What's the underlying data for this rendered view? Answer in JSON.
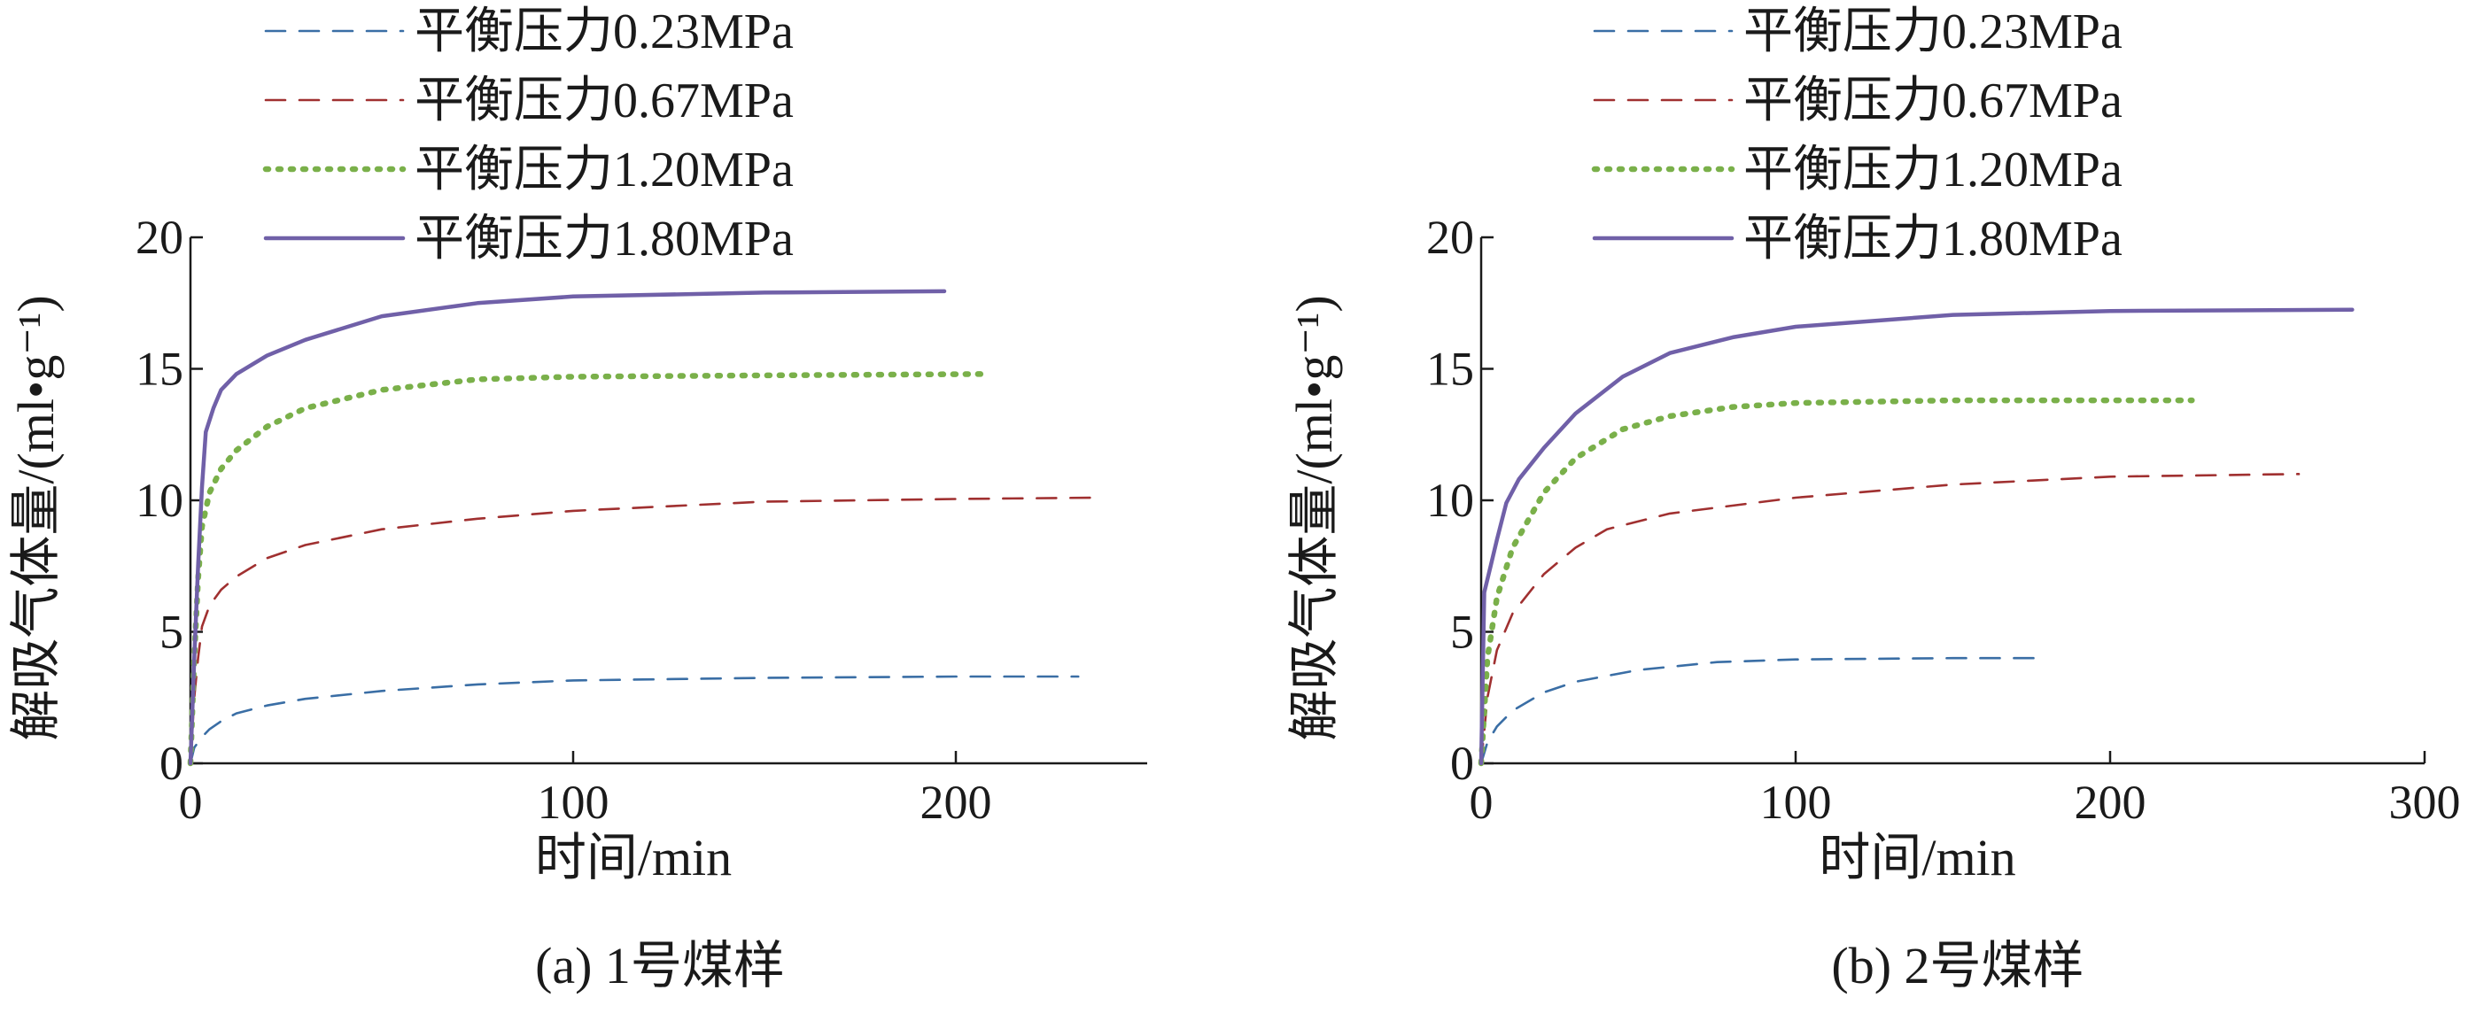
{
  "chart_data": [
    {
      "type": "line",
      "caption": "(a) 1号煤样",
      "xlabel": "时间/min",
      "ylabel": "解吸气体量/(ml•g⁻¹)",
      "xlim": [
        0,
        250
      ],
      "ylim": [
        0,
        20
      ],
      "xticks": [
        0,
        100,
        200
      ],
      "yticks": [
        0,
        5,
        10,
        15,
        20
      ],
      "legend_position": "top",
      "series": [
        {
          "name": "平衡压力0.23MPa",
          "color": "#3a6ea5",
          "style": "dashed",
          "x": [
            0,
            1,
            3,
            5,
            8,
            12,
            20,
            30,
            50,
            75,
            100,
            150,
            200,
            232
          ],
          "y": [
            0,
            0.6,
            1.0,
            1.3,
            1.6,
            1.9,
            2.2,
            2.45,
            2.75,
            3.0,
            3.15,
            3.25,
            3.3,
            3.3
          ]
        },
        {
          "name": "平衡压力0.67MPa",
          "color": "#a03030",
          "style": "dashed",
          "x": [
            0,
            1,
            2,
            3,
            5,
            8,
            12,
            20,
            30,
            50,
            75,
            100,
            150,
            200,
            236
          ],
          "y": [
            0,
            2.5,
            4.0,
            5.2,
            6.0,
            6.6,
            7.1,
            7.8,
            8.3,
            8.9,
            9.3,
            9.6,
            9.95,
            10.05,
            10.1
          ]
        },
        {
          "name": "平衡压力1.20MPa",
          "color": "#7ab04a",
          "style": "dotted",
          "x": [
            0,
            1,
            2,
            3,
            5,
            8,
            12,
            20,
            30,
            50,
            75,
            100,
            150,
            207
          ],
          "y": [
            0,
            4.0,
            7.0,
            9.0,
            10.3,
            11.2,
            11.9,
            12.8,
            13.5,
            14.2,
            14.6,
            14.7,
            14.75,
            14.8
          ]
        },
        {
          "name": "平衡压力1.80MPa",
          "color": "#7060a8",
          "style": "solid",
          "x": [
            0,
            1,
            2,
            3,
            4,
            6,
            8,
            12,
            20,
            30,
            50,
            75,
            100,
            150,
            197
          ],
          "y": [
            0,
            4.0,
            7.5,
            10.5,
            12.6,
            13.5,
            14.2,
            14.8,
            15.5,
            16.1,
            17.0,
            17.5,
            17.75,
            17.9,
            17.95
          ]
        }
      ]
    },
    {
      "type": "line",
      "caption": "(b) 2号煤样",
      "xlabel": "时间/min",
      "ylabel": "解吸气体量/(ml•g⁻¹)",
      "xlim": [
        0,
        300
      ],
      "ylim": [
        0,
        20
      ],
      "xticks": [
        0,
        100,
        200,
        300
      ],
      "yticks": [
        0,
        5,
        10,
        15,
        20
      ],
      "legend_position": "top",
      "series": [
        {
          "name": "平衡压力0.23MPa",
          "color": "#3a6ea5",
          "style": "dashed",
          "x": [
            0,
            2,
            5,
            10,
            20,
            30,
            50,
            75,
            100,
            150,
            180
          ],
          "y": [
            0,
            0.8,
            1.4,
            2.0,
            2.7,
            3.1,
            3.55,
            3.85,
            3.95,
            4.0,
            4.0
          ]
        },
        {
          "name": "平衡压力0.67MPa",
          "color": "#a03030",
          "style": "dashed",
          "x": [
            0,
            2,
            5,
            10,
            20,
            30,
            40,
            60,
            100,
            150,
            200,
            260
          ],
          "y": [
            0,
            2.5,
            4.3,
            5.7,
            7.2,
            8.2,
            8.9,
            9.5,
            10.1,
            10.6,
            10.9,
            11.0
          ]
        },
        {
          "name": "平衡压力1.20MPa",
          "color": "#7ab04a",
          "style": "dotted",
          "x": [
            0,
            2,
            5,
            10,
            20,
            30,
            45,
            60,
            80,
            100,
            150,
            226
          ],
          "y": [
            0,
            4.0,
            6.3,
            8.2,
            10.3,
            11.6,
            12.7,
            13.2,
            13.55,
            13.7,
            13.8,
            13.8
          ]
        },
        {
          "name": "平衡压力1.80MPa",
          "color": "#7060a8",
          "style": "solid",
          "x": [
            0,
            1,
            3,
            5,
            8,
            12,
            20,
            30,
            45,
            60,
            80,
            100,
            150,
            200,
            277
          ],
          "y": [
            0,
            6.5,
            7.5,
            8.5,
            9.9,
            10.8,
            12.0,
            13.3,
            14.7,
            15.6,
            16.2,
            16.6,
            17.05,
            17.2,
            17.25
          ]
        }
      ]
    }
  ]
}
